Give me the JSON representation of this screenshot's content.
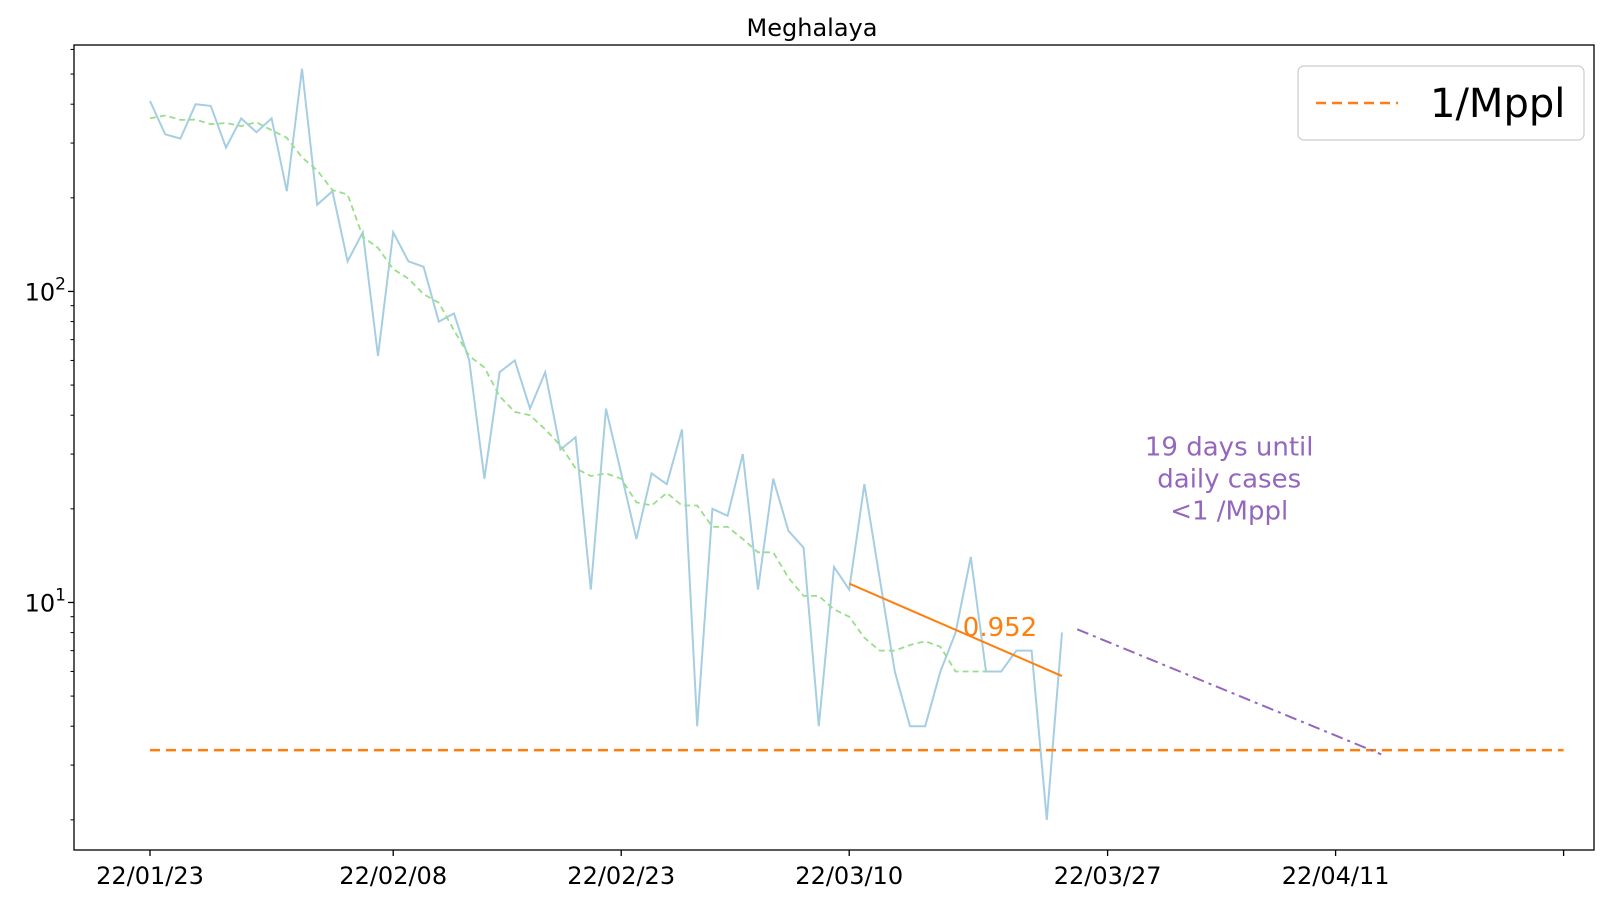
{
  "chart_data": {
    "type": "line",
    "title": "Meghalaya",
    "xlabel": "",
    "ylabel": "",
    "yscale": "log",
    "ylim": [
      1.6,
      620
    ],
    "xlim": [
      "2022-01-18",
      "2022-04-28"
    ],
    "x_ticks": [
      {
        "date": "2022-01-23",
        "label": "22/01/23"
      },
      {
        "date": "2022-02-08",
        "label": "22/02/08"
      },
      {
        "date": "2022-02-23",
        "label": "22/02/23"
      },
      {
        "date": "2022-03-10",
        "label": "22/03/10"
      },
      {
        "date": "2022-03-27",
        "label": "22/03/27"
      },
      {
        "date": "2022-04-11",
        "label": "22/04/11"
      },
      {
        "date": "2022-04-26",
        "label": ""
      }
    ],
    "y_ticks": [
      {
        "value": 10,
        "base": "10",
        "exp": "1"
      },
      {
        "value": 100,
        "base": "10",
        "exp": "2"
      }
    ],
    "grid": false,
    "legend": {
      "position": "top-right",
      "entries": [
        {
          "label": "1/Mppl",
          "color": "#ff7f0e",
          "style": "dashed"
        }
      ]
    },
    "series": [
      {
        "role": "daily",
        "color": "#a6cee3",
        "style": "solid",
        "start_date": "2022-01-23",
        "values": [
          410,
          320,
          310,
          400,
          395,
          290,
          360,
          325,
          360,
          210,
          520,
          190,
          210,
          125,
          155,
          62,
          155,
          125,
          120,
          80,
          85,
          60,
          25,
          55,
          60,
          42,
          55,
          31,
          34,
          11,
          42,
          26,
          16,
          26,
          24,
          36,
          4,
          20,
          19,
          30,
          11,
          25,
          17,
          15,
          4,
          13,
          11,
          24,
          12,
          6,
          4,
          4,
          6,
          8,
          14,
          6,
          6,
          7,
          7,
          2,
          8
        ]
      },
      {
        "role": "rolling-average",
        "color": "#98df8a",
        "style": "dashed",
        "start_date": "2022-01-23",
        "values": [
          360,
          368,
          356,
          357,
          345,
          348,
          340,
          350,
          330,
          312,
          270,
          245,
          212,
          205,
          150,
          138,
          118,
          110,
          98,
          92,
          75,
          62,
          57,
          46,
          41,
          40,
          36,
          32,
          27,
          25.5,
          26,
          25,
          21,
          20.5,
          22.5,
          20.5,
          20.5,
          17.5,
          17.5,
          16,
          14.5,
          14.5,
          12,
          10.5,
          10.5,
          9.5,
          9,
          7.7,
          7,
          7,
          7.3,
          7.5,
          7.2,
          6,
          6,
          6
        ]
      }
    ],
    "fit_line": {
      "label": "0.952",
      "color": "#ff7f0e",
      "from": {
        "x": "2022-03-10",
        "y": 11.5
      },
      "to": {
        "x": "2022-03-24",
        "y": 5.8
      }
    },
    "projection_line": {
      "color": "#9467bd",
      "style": "dashdot",
      "from": {
        "x": "2022-03-25",
        "y": 8.2
      },
      "to": {
        "x": "2022-04-14",
        "y": 3.25
      }
    },
    "threshold_line": {
      "label": "1/Mppl",
      "color": "#ff7f0e",
      "style": "dashed",
      "y": 3.35,
      "from": "2022-01-23",
      "to": "2022-04-26"
    },
    "annotation": {
      "lines": [
        "19 days until",
        "daily cases",
        "<1 /Mppl"
      ],
      "color": "#9467bd",
      "x": "2022-04-04",
      "y": 25
    }
  }
}
